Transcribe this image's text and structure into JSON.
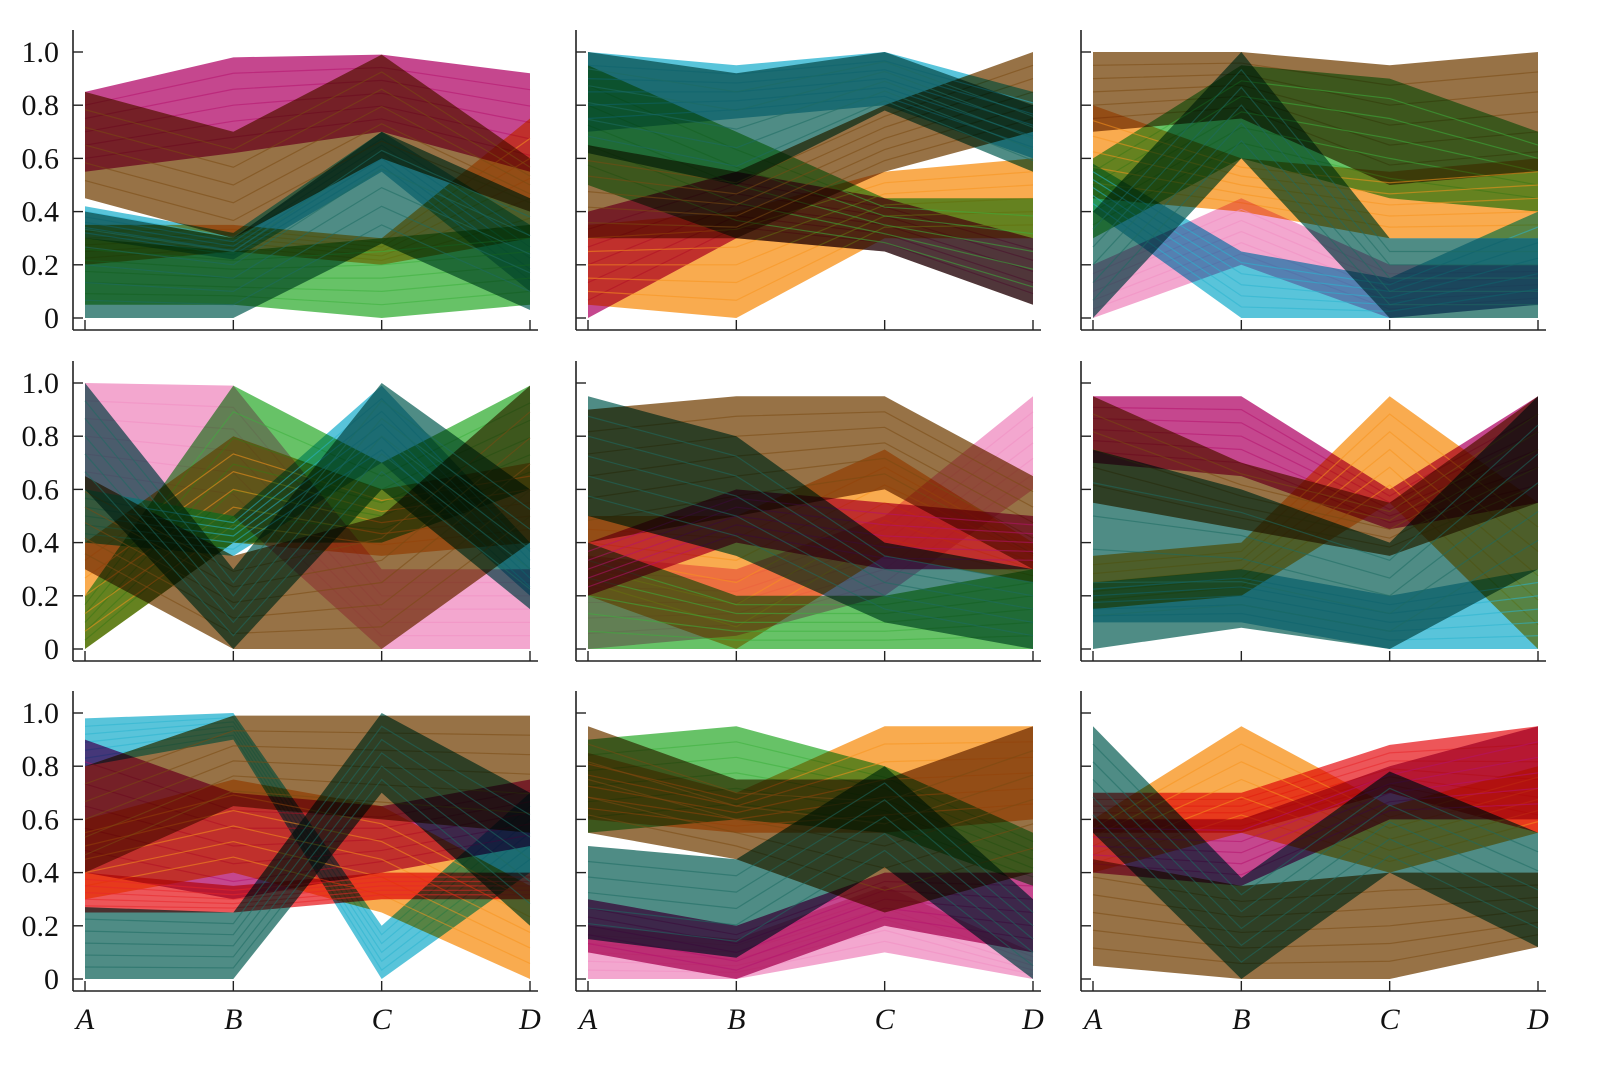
{
  "chart_data": [
    {
      "type": "line",
      "categories": [
        "A",
        "B",
        "C",
        "D"
      ],
      "ylim": [
        0,
        1
      ],
      "yticks": [
        "0",
        "0.2",
        "0.4",
        "0.6",
        "0.8",
        "1.0"
      ],
      "series": [
        {
          "color": "#b5136e",
          "lower": [
            0.55,
            0.62,
            0.7,
            0.55
          ],
          "upper": [
            0.85,
            0.98,
            0.99,
            0.92
          ]
        },
        {
          "color": "#f7931e",
          "lower": [
            0.2,
            0.25,
            0.2,
            0.3
          ],
          "upper": [
            0.35,
            0.35,
            0.3,
            0.75
          ]
        },
        {
          "color": "#2ab4d0",
          "lower": [
            0.3,
            0.22,
            0.55,
            0.1
          ],
          "upper": [
            0.42,
            0.32,
            0.7,
            0.35
          ]
        },
        {
          "color": "#3cb13c",
          "lower": [
            0.05,
            0.05,
            0.0,
            0.05
          ],
          "upper": [
            0.3,
            0.25,
            0.3,
            0.35
          ]
        },
        {
          "color": "#7a4a12",
          "lower": [
            0.45,
            0.3,
            0.6,
            0.4
          ],
          "upper": [
            0.85,
            0.7,
            0.99,
            0.6
          ]
        },
        {
          "color": "#1d6b63",
          "lower": [
            0.0,
            0.0,
            0.28,
            0.03
          ],
          "upper": [
            0.4,
            0.3,
            0.7,
            0.45
          ]
        }
      ]
    },
    {
      "type": "line",
      "categories": [
        "A",
        "B",
        "C",
        "D"
      ],
      "ylim": [
        0,
        1
      ],
      "yticks": [],
      "series": [
        {
          "color": "#b5136e",
          "lower": [
            0.0,
            0.3,
            0.25,
            0.05
          ],
          "upper": [
            0.4,
            0.55,
            0.45,
            0.3
          ]
        },
        {
          "color": "#f7931e",
          "lower": [
            0.05,
            0.0,
            0.3,
            0.3
          ],
          "upper": [
            0.35,
            0.4,
            0.55,
            0.6
          ]
        },
        {
          "color": "#3cb13c",
          "lower": [
            0.5,
            0.3,
            0.25,
            0.05
          ],
          "upper": [
            0.95,
            0.7,
            0.45,
            0.45
          ]
        },
        {
          "color": "#7a4a12",
          "lower": [
            0.3,
            0.3,
            0.55,
            0.7
          ],
          "upper": [
            0.65,
            0.55,
            0.8,
            1.0
          ]
        },
        {
          "color": "#2ab4d0",
          "lower": [
            0.7,
            0.75,
            0.8,
            0.6
          ],
          "upper": [
            1.0,
            0.95,
            1.0,
            0.85
          ]
        },
        {
          "color": "#1d6b63",
          "lower": [
            0.62,
            0.5,
            0.78,
            0.55
          ],
          "upper": [
            1.0,
            0.92,
            1.0,
            0.8
          ]
        }
      ]
    },
    {
      "type": "line",
      "categories": [
        "A",
        "B",
        "C",
        "D"
      ],
      "ylim": [
        0,
        1
      ],
      "yticks": [],
      "series": [
        {
          "color": "#7a4a12",
          "lower": [
            0.7,
            0.75,
            0.5,
            0.55
          ],
          "upper": [
            1.0,
            1.0,
            0.95,
            1.0
          ]
        },
        {
          "color": "#3cb13c",
          "lower": [
            0.3,
            0.6,
            0.45,
            0.4
          ],
          "upper": [
            0.6,
            0.95,
            0.9,
            0.7
          ]
        },
        {
          "color": "#f7931e",
          "lower": [
            0.45,
            0.4,
            0.3,
            0.3
          ],
          "upper": [
            0.8,
            0.6,
            0.55,
            0.6
          ]
        },
        {
          "color": "#f08ec2",
          "lower": [
            0.0,
            0.2,
            0.0,
            0.05
          ],
          "upper": [
            0.2,
            0.45,
            0.2,
            0.2
          ]
        },
        {
          "color": "#2ab4d0",
          "lower": [
            0.4,
            0.0,
            0.0,
            0.05
          ],
          "upper": [
            0.58,
            0.25,
            0.15,
            0.4
          ]
        },
        {
          "color": "#1d6b63",
          "lower": [
            0.0,
            0.6,
            0.0,
            0.0
          ],
          "upper": [
            0.4,
            1.0,
            0.3,
            0.3
          ]
        }
      ]
    },
    {
      "type": "line",
      "categories": [
        "A",
        "B",
        "C",
        "D"
      ],
      "ylim": [
        0,
        1
      ],
      "yticks": [
        "0",
        "0.2",
        "0.4",
        "0.6",
        "0.8",
        "1.0"
      ],
      "series": [
        {
          "color": "#f08ec2",
          "lower": [
            0.6,
            0.5,
            0.0,
            0.0
          ],
          "upper": [
            1.0,
            0.99,
            0.3,
            0.3
          ]
        },
        {
          "color": "#3cb13c",
          "lower": [
            0.0,
            0.4,
            0.4,
            0.6
          ],
          "upper": [
            0.2,
            0.99,
            0.7,
            0.99
          ]
        },
        {
          "color": "#f7931e",
          "lower": [
            0.0,
            0.4,
            0.35,
            0.4
          ],
          "upper": [
            0.4,
            0.8,
            0.6,
            0.7
          ]
        },
        {
          "color": "#2ab4d0",
          "lower": [
            0.4,
            0.35,
            0.7,
            0.2
          ],
          "upper": [
            0.6,
            0.5,
            0.99,
            0.4
          ]
        },
        {
          "color": "#7a4a12",
          "lower": [
            0.3,
            0.0,
            0.0,
            0.4
          ],
          "upper": [
            0.65,
            0.35,
            0.5,
            0.99
          ]
        },
        {
          "color": "#1d6b63",
          "lower": [
            0.6,
            0.0,
            0.6,
            0.15
          ],
          "upper": [
            1.0,
            0.3,
            1.0,
            0.6
          ]
        }
      ]
    },
    {
      "type": "line",
      "categories": [
        "A",
        "B",
        "C",
        "D"
      ],
      "ylim": [
        0,
        1
      ],
      "yticks": [],
      "series": [
        {
          "color": "#f08ec2",
          "lower": [
            0.0,
            0.05,
            0.2,
            0.6
          ],
          "upper": [
            0.35,
            0.3,
            0.5,
            0.95
          ]
        },
        {
          "color": "#f7931e",
          "lower": [
            0.2,
            0.0,
            0.35,
            0.25
          ],
          "upper": [
            0.5,
            0.5,
            0.75,
            0.4
          ]
        },
        {
          "color": "#3cb13c",
          "lower": [
            0.0,
            0.0,
            0.0,
            0.0
          ],
          "upper": [
            0.4,
            0.2,
            0.2,
            0.3
          ]
        },
        {
          "color": "#7a4a12",
          "lower": [
            0.4,
            0.5,
            0.6,
            0.3
          ],
          "upper": [
            0.9,
            0.95,
            0.95,
            0.65
          ]
        },
        {
          "color": "#b5136e",
          "lower": [
            0.2,
            0.4,
            0.3,
            0.3
          ],
          "upper": [
            0.4,
            0.6,
            0.55,
            0.5
          ]
        },
        {
          "color": "#1d6b63",
          "lower": [
            0.5,
            0.35,
            0.1,
            0.0
          ],
          "upper": [
            0.95,
            0.8,
            0.4,
            0.3
          ]
        }
      ]
    },
    {
      "type": "line",
      "categories": [
        "A",
        "B",
        "C",
        "D"
      ],
      "ylim": [
        0,
        1
      ],
      "yticks": [],
      "series": [
        {
          "color": "#b5136e",
          "lower": [
            0.7,
            0.65,
            0.45,
            0.55
          ],
          "upper": [
            0.95,
            0.95,
            0.6,
            0.95
          ]
        },
        {
          "color": "#f7931e",
          "lower": [
            0.15,
            0.2,
            0.55,
            0.0
          ],
          "upper": [
            0.35,
            0.4,
            0.95,
            0.55
          ]
        },
        {
          "color": "#2ab4d0",
          "lower": [
            0.1,
            0.1,
            0.0,
            0.0
          ],
          "upper": [
            0.25,
            0.3,
            0.2,
            0.3
          ]
        },
        {
          "color": "#7a4a12",
          "lower": [
            0.55,
            0.45,
            0.35,
            0.55
          ],
          "upper": [
            0.95,
            0.7,
            0.55,
            0.95
          ]
        },
        {
          "color": "#1d6b63",
          "lower": [
            0.0,
            0.08,
            0.0,
            0.3
          ],
          "upper": [
            0.75,
            0.6,
            0.4,
            0.95
          ]
        }
      ]
    },
    {
      "type": "line",
      "categories": [
        "A",
        "B",
        "C",
        "D"
      ],
      "ylim": [
        0,
        1
      ],
      "yticks": [
        "0",
        "0.2",
        "0.4",
        "0.6",
        "0.8",
        "1.0"
      ],
      "series": [
        {
          "color": "#2ab4d0",
          "lower": [
            0.8,
            0.9,
            0.0,
            0.4
          ],
          "upper": [
            0.98,
            1.0,
            0.2,
            0.7
          ]
        },
        {
          "color": "#b5136e",
          "lower": [
            0.4,
            0.3,
            0.4,
            0.5
          ],
          "upper": [
            0.9,
            0.7,
            0.65,
            0.75
          ]
        },
        {
          "color": "#f7931e",
          "lower": [
            0.3,
            0.4,
            0.25,
            0.0
          ],
          "upper": [
            0.6,
            0.75,
            0.65,
            0.35
          ]
        },
        {
          "color": "#e8262a",
          "lower": [
            0.25,
            0.25,
            0.3,
            0.3
          ],
          "upper": [
            0.4,
            0.35,
            0.4,
            0.4
          ]
        },
        {
          "color": "#7a4a12",
          "lower": [
            0.4,
            0.65,
            0.6,
            0.55
          ],
          "upper": [
            0.8,
            0.99,
            0.99,
            0.99
          ]
        },
        {
          "color": "#1d6b63",
          "lower": [
            0.0,
            0.0,
            0.7,
            0.2
          ],
          "upper": [
            0.27,
            0.25,
            1.0,
            0.7
          ]
        }
      ]
    },
    {
      "type": "line",
      "categories": [
        "A",
        "B",
        "C",
        "D"
      ],
      "ylim": [
        0,
        1
      ],
      "yticks": [],
      "series": [
        {
          "color": "#f08ec2",
          "lower": [
            0.0,
            0.0,
            0.1,
            0.0
          ],
          "upper": [
            0.2,
            0.15,
            0.35,
            0.1
          ]
        },
        {
          "color": "#3cb13c",
          "lower": [
            0.55,
            0.6,
            0.55,
            0.35
          ],
          "upper": [
            0.9,
            0.95,
            0.8,
            0.55
          ]
        },
        {
          "color": "#f7931e",
          "lower": [
            0.6,
            0.55,
            0.55,
            0.6
          ],
          "upper": [
            0.85,
            0.7,
            0.95,
            0.95
          ]
        },
        {
          "color": "#b5136e",
          "lower": [
            0.1,
            0.0,
            0.2,
            0.1
          ],
          "upper": [
            0.3,
            0.2,
            0.4,
            0.4
          ]
        },
        {
          "color": "#7a4a12",
          "lower": [
            0.55,
            0.45,
            0.25,
            0.4
          ],
          "upper": [
            0.95,
            0.75,
            0.75,
            0.95
          ]
        },
        {
          "color": "#1d6b63",
          "lower": [
            0.15,
            0.08,
            0.42,
            0.0
          ],
          "upper": [
            0.5,
            0.45,
            0.8,
            0.3
          ]
        }
      ]
    },
    {
      "type": "line",
      "categories": [
        "A",
        "B",
        "C",
        "D"
      ],
      "ylim": [
        0,
        1
      ],
      "yticks": [],
      "series": [
        {
          "color": "#e8262a",
          "lower": [
            0.55,
            0.55,
            0.7,
            0.55
          ],
          "upper": [
            0.7,
            0.7,
            0.88,
            0.95
          ]
        },
        {
          "color": "#f7931e",
          "lower": [
            0.4,
            0.55,
            0.4,
            0.55
          ],
          "upper": [
            0.6,
            0.95,
            0.65,
            0.8
          ]
        },
        {
          "color": "#b5136e",
          "lower": [
            0.4,
            0.35,
            0.6,
            0.6
          ],
          "upper": [
            0.6,
            0.6,
            0.8,
            0.95
          ]
        },
        {
          "color": "#7a4a12",
          "lower": [
            0.05,
            0.0,
            0.0,
            0.12
          ],
          "upper": [
            0.45,
            0.35,
            0.4,
            0.4
          ]
        },
        {
          "color": "#1d6b63",
          "lower": [
            0.55,
            0.0,
            0.4,
            0.12
          ],
          "upper": [
            0.95,
            0.38,
            0.78,
            0.55
          ]
        }
      ]
    }
  ]
}
